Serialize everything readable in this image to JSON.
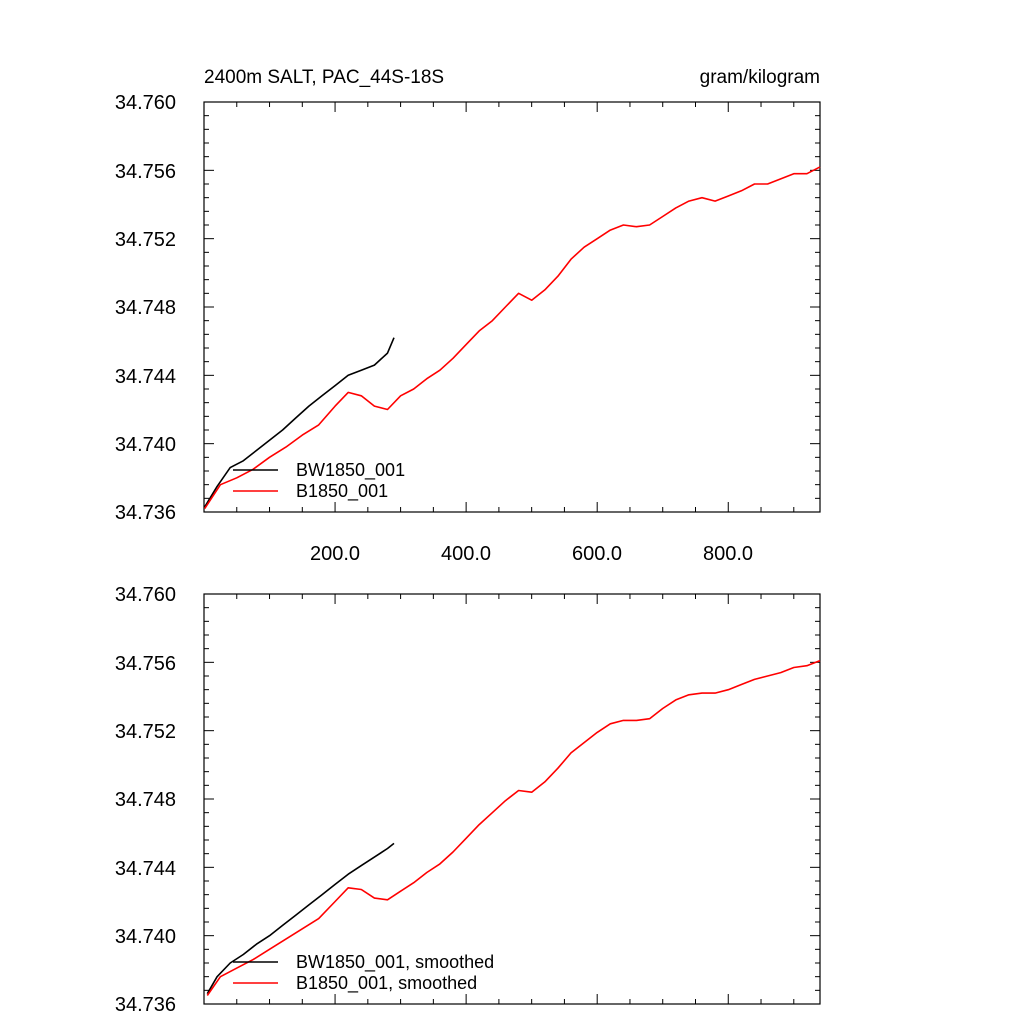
{
  "chart_data": [
    {
      "type": "line",
      "title": "2400m SALT, PAC_44S-18S",
      "units": "gram/kilogram",
      "xlim": [
        0,
        940
      ],
      "ylim": [
        34.736,
        34.76
      ],
      "y_ticks": [
        "34.736",
        "34.740",
        "34.744",
        "34.748",
        "34.752",
        "34.756",
        "34.760"
      ],
      "x_ticks": [
        "200.0",
        "400.0",
        "600.0",
        "800.0"
      ],
      "grid": false,
      "legend_position": "bottom-left",
      "series": [
        {
          "name": "BW1850_001",
          "color": "#000000",
          "x": [
            1,
            20,
            40,
            60,
            80,
            100,
            120,
            140,
            160,
            180,
            200,
            220,
            240,
            260,
            280,
            290
          ],
          "y": [
            34.7363,
            34.7375,
            34.7386,
            34.739,
            34.7396,
            34.7402,
            34.7408,
            34.7415,
            34.7422,
            34.7428,
            34.7434,
            34.744,
            34.7443,
            34.7446,
            34.7453,
            34.7462
          ]
        },
        {
          "name": "B1850_001",
          "color": "#ff0000",
          "x": [
            1,
            25,
            50,
            75,
            100,
            125,
            150,
            175,
            200,
            220,
            240,
            260,
            280,
            300,
            320,
            340,
            360,
            380,
            400,
            420,
            440,
            460,
            480,
            500,
            520,
            540,
            560,
            580,
            600,
            620,
            640,
            660,
            680,
            700,
            720,
            740,
            760,
            780,
            800,
            820,
            840,
            860,
            880,
            900,
            920,
            940
          ],
          "y": [
            34.7362,
            34.7376,
            34.738,
            34.7385,
            34.7392,
            34.7398,
            34.7405,
            34.7411,
            34.7422,
            34.743,
            34.7428,
            34.7422,
            34.742,
            34.7428,
            34.7432,
            34.7438,
            34.7443,
            34.745,
            34.7458,
            34.7466,
            34.7472,
            34.748,
            34.7488,
            34.7484,
            34.749,
            34.7498,
            34.7508,
            34.7515,
            34.752,
            34.7525,
            34.7528,
            34.7527,
            34.7528,
            34.7533,
            34.7538,
            34.7542,
            34.7544,
            34.7542,
            34.7545,
            34.7548,
            34.7552,
            34.7552,
            34.7555,
            34.7558,
            34.7558,
            34.7562
          ]
        }
      ]
    },
    {
      "type": "line",
      "xlim": [
        0,
        940
      ],
      "ylim": [
        34.736,
        34.76
      ],
      "y_ticks": [
        "34.736",
        "34.740",
        "34.744",
        "34.748",
        "34.752",
        "34.756",
        "34.760"
      ],
      "grid": false,
      "legend_position": "bottom-left",
      "series": [
        {
          "name": "BW1850_001, smoothed",
          "color": "#000000",
          "x": [
            5,
            20,
            40,
            60,
            80,
            100,
            120,
            140,
            160,
            180,
            200,
            220,
            240,
            260,
            280,
            290
          ],
          "y": [
            34.7366,
            34.7376,
            34.7384,
            34.7389,
            34.7395,
            34.74,
            34.7406,
            34.7412,
            34.7418,
            34.7424,
            34.743,
            34.7436,
            34.7441,
            34.7446,
            34.7451,
            34.7454
          ]
        },
        {
          "name": "B1850_001, smoothed",
          "color": "#ff0000",
          "x": [
            5,
            25,
            50,
            75,
            100,
            125,
            150,
            175,
            200,
            220,
            240,
            260,
            280,
            300,
            320,
            340,
            360,
            380,
            400,
            420,
            440,
            460,
            480,
            500,
            520,
            540,
            560,
            580,
            600,
            620,
            640,
            660,
            680,
            700,
            720,
            740,
            760,
            780,
            800,
            820,
            840,
            860,
            880,
            900,
            920,
            940
          ],
          "y": [
            34.7365,
            34.7376,
            34.7381,
            34.7386,
            34.7392,
            34.7398,
            34.7404,
            34.741,
            34.742,
            34.7428,
            34.7427,
            34.7422,
            34.7421,
            34.7426,
            34.7431,
            34.7437,
            34.7442,
            34.7449,
            34.7457,
            34.7465,
            34.7472,
            34.7479,
            34.7485,
            34.7484,
            34.749,
            34.7498,
            34.7507,
            34.7513,
            34.7519,
            34.7524,
            34.7526,
            34.7526,
            34.7527,
            34.7533,
            34.7538,
            34.7541,
            34.7542,
            34.7542,
            34.7544,
            34.7547,
            34.755,
            34.7552,
            34.7554,
            34.7557,
            34.7558,
            34.7561
          ]
        }
      ]
    }
  ]
}
